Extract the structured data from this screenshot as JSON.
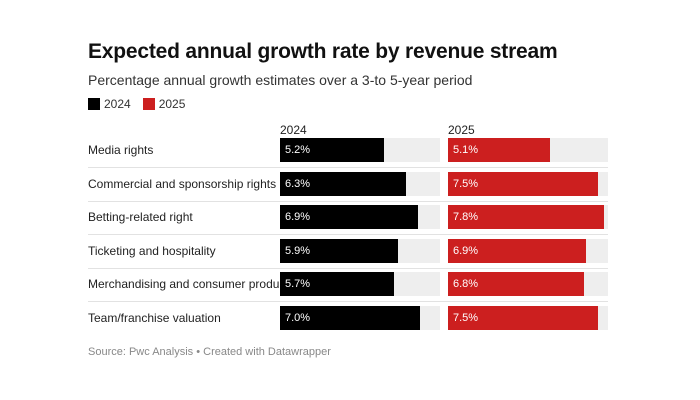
{
  "chart_data": {
    "type": "bar",
    "title": "Expected annual growth rate by revenue stream",
    "subtitle": "Percentage annual growth estimates over a 3-to 5-year period",
    "categories": [
      "Media rights",
      "Commercial and sponsorship rights",
      "Betting-related right",
      "Ticketing and hospitality",
      "Merchandising and consumer products",
      "Team/franchise valuation"
    ],
    "series": [
      {
        "name": "2024",
        "color": "#000000",
        "values": [
          5.2,
          6.3,
          6.9,
          5.9,
          5.7,
          7.0
        ]
      },
      {
        "name": "2025",
        "color": "#cc1f1f",
        "values": [
          5.1,
          7.5,
          7.8,
          6.9,
          6.8,
          7.5
        ]
      }
    ],
    "value_labels": {
      "2024": [
        "5.2%",
        "6.3%",
        "6.9%",
        "5.9%",
        "5.7%",
        "7.0%"
      ],
      "2025": [
        "5.1%",
        "7.5%",
        "7.8%",
        "6.9%",
        "6.8%",
        "7.5%"
      ]
    },
    "xlim": [
      0,
      8
    ],
    "track_color": "#eeeeee",
    "legend": [
      "2024",
      "2025"
    ],
    "legend_position": "top-left",
    "source": "Source: Pwc Analysis • Created with Datawrapper"
  }
}
